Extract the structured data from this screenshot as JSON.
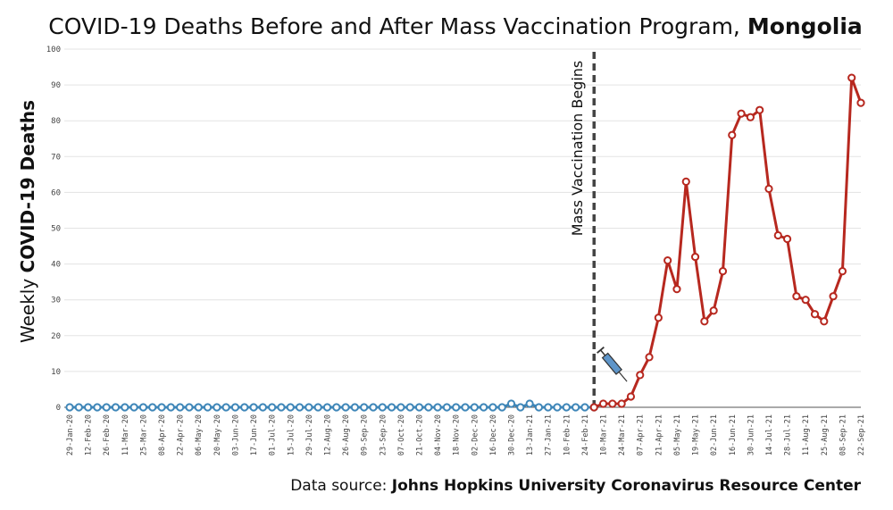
{
  "chart_data": {
    "type": "line",
    "title_prefix": "COVID-19 Deaths Before and After Mass Vaccination Program, ",
    "title_bold": "Mongolia",
    "ylabel_prefix": "Weekly ",
    "ylabel_bold": "COVID-19 Deaths",
    "ylim": [
      0,
      100
    ],
    "yticks": [
      "0",
      "10",
      "20",
      "30",
      "40",
      "50",
      "60",
      "70",
      "80",
      "90",
      "100"
    ],
    "grid": true,
    "x_tick_labels": [
      "29-Jan-20",
      "12-Feb-20",
      "26-Feb-20",
      "11-Mar-20",
      "25-Mar-20",
      "08-Apr-20",
      "22-Apr-20",
      "06-May-20",
      "20-May-20",
      "03-Jun-20",
      "17-Jun-20",
      "01-Jul-20",
      "15-Jul-20",
      "29-Jul-20",
      "12-Aug-20",
      "26-Aug-20",
      "09-Sep-20",
      "23-Sep-20",
      "07-Oct-20",
      "21-Oct-20",
      "04-Nov-20",
      "18-Nov-20",
      "02-Dec-20",
      "16-Dec-20",
      "30-Dec-20",
      "13-Jan-21",
      "27-Jan-21",
      "10-Feb-21",
      "24-Feb-21",
      "10-Mar-21",
      "24-Mar-21",
      "07-Apr-21",
      "21-Apr-21",
      "05-May-21",
      "19-May-21",
      "02-Jun-21",
      "16-Jun-21",
      "30-Jun-21",
      "14-Jul-21",
      "28-Jul-21",
      "11-Aug-21",
      "25-Aug-21",
      "08-Sep-21",
      "22-Sep-21"
    ],
    "vaccination_marker": {
      "label": "Mass Vaccination Begins",
      "x": "03-Mar-21"
    },
    "series": [
      {
        "color": "#3e86b8",
        "x": [
          "29-Jan-20",
          "05-Feb-20",
          "12-Feb-20",
          "19-Feb-20",
          "26-Feb-20",
          "04-Mar-20",
          "11-Mar-20",
          "18-Mar-20",
          "25-Mar-20",
          "01-Apr-20",
          "08-Apr-20",
          "15-Apr-20",
          "22-Apr-20",
          "29-Apr-20",
          "06-May-20",
          "13-May-20",
          "20-May-20",
          "27-May-20",
          "03-Jun-20",
          "10-Jun-20",
          "17-Jun-20",
          "24-Jun-20",
          "01-Jul-20",
          "08-Jul-20",
          "15-Jul-20",
          "22-Jul-20",
          "29-Jul-20",
          "05-Aug-20",
          "12-Aug-20",
          "19-Aug-20",
          "26-Aug-20",
          "02-Sep-20",
          "09-Sep-20",
          "16-Sep-20",
          "23-Sep-20",
          "30-Sep-20",
          "07-Oct-20",
          "14-Oct-20",
          "21-Oct-20",
          "28-Oct-20",
          "04-Nov-20",
          "11-Nov-20",
          "18-Nov-20",
          "25-Nov-20",
          "02-Dec-20",
          "09-Dec-20",
          "16-Dec-20",
          "23-Dec-20",
          "30-Dec-20",
          "06-Jan-21",
          "13-Jan-21",
          "20-Jan-21",
          "27-Jan-21",
          "03-Feb-21",
          "10-Feb-21",
          "17-Feb-21",
          "24-Feb-21",
          "03-Mar-21"
        ],
        "values": [
          0,
          0,
          0,
          0,
          0,
          0,
          0,
          0,
          0,
          0,
          0,
          0,
          0,
          0,
          0,
          0,
          0,
          0,
          0,
          0,
          0,
          0,
          0,
          0,
          0,
          0,
          0,
          0,
          0,
          0,
          0,
          0,
          0,
          0,
          0,
          0,
          0,
          0,
          0,
          0,
          0,
          0,
          0,
          0,
          0,
          0,
          0,
          0,
          1,
          0,
          1,
          0,
          0,
          0,
          0,
          0,
          0,
          0
        ]
      },
      {
        "color": "#b7281f",
        "x": [
          "03-Mar-21",
          "10-Mar-21",
          "17-Mar-21",
          "24-Mar-21",
          "31-Mar-21",
          "07-Apr-21",
          "14-Apr-21",
          "21-Apr-21",
          "28-Apr-21",
          "05-May-21",
          "12-May-21",
          "19-May-21",
          "26-May-21",
          "02-Jun-21",
          "09-Jun-21",
          "16-Jun-21",
          "23-Jun-21",
          "30-Jun-21",
          "07-Jul-21",
          "14-Jul-21",
          "21-Jul-21",
          "28-Jul-21",
          "04-Aug-21",
          "11-Aug-21",
          "18-Aug-21",
          "25-Aug-21",
          "01-Sep-21",
          "08-Sep-21",
          "15-Sep-21",
          "22-Sep-21"
        ],
        "values": [
          0,
          1,
          1,
          1,
          3,
          9,
          14,
          25,
          41,
          33,
          63,
          42,
          24,
          27,
          38,
          76,
          82,
          81,
          83,
          61,
          48,
          47,
          31,
          30,
          26,
          24,
          31,
          38,
          92,
          85
        ]
      }
    ]
  },
  "source_prefix": "Data source: ",
  "source_bold": "Johns Hopkins University Coronavirus Resource Center",
  "icons": {
    "annotation": "syringe-icon"
  }
}
